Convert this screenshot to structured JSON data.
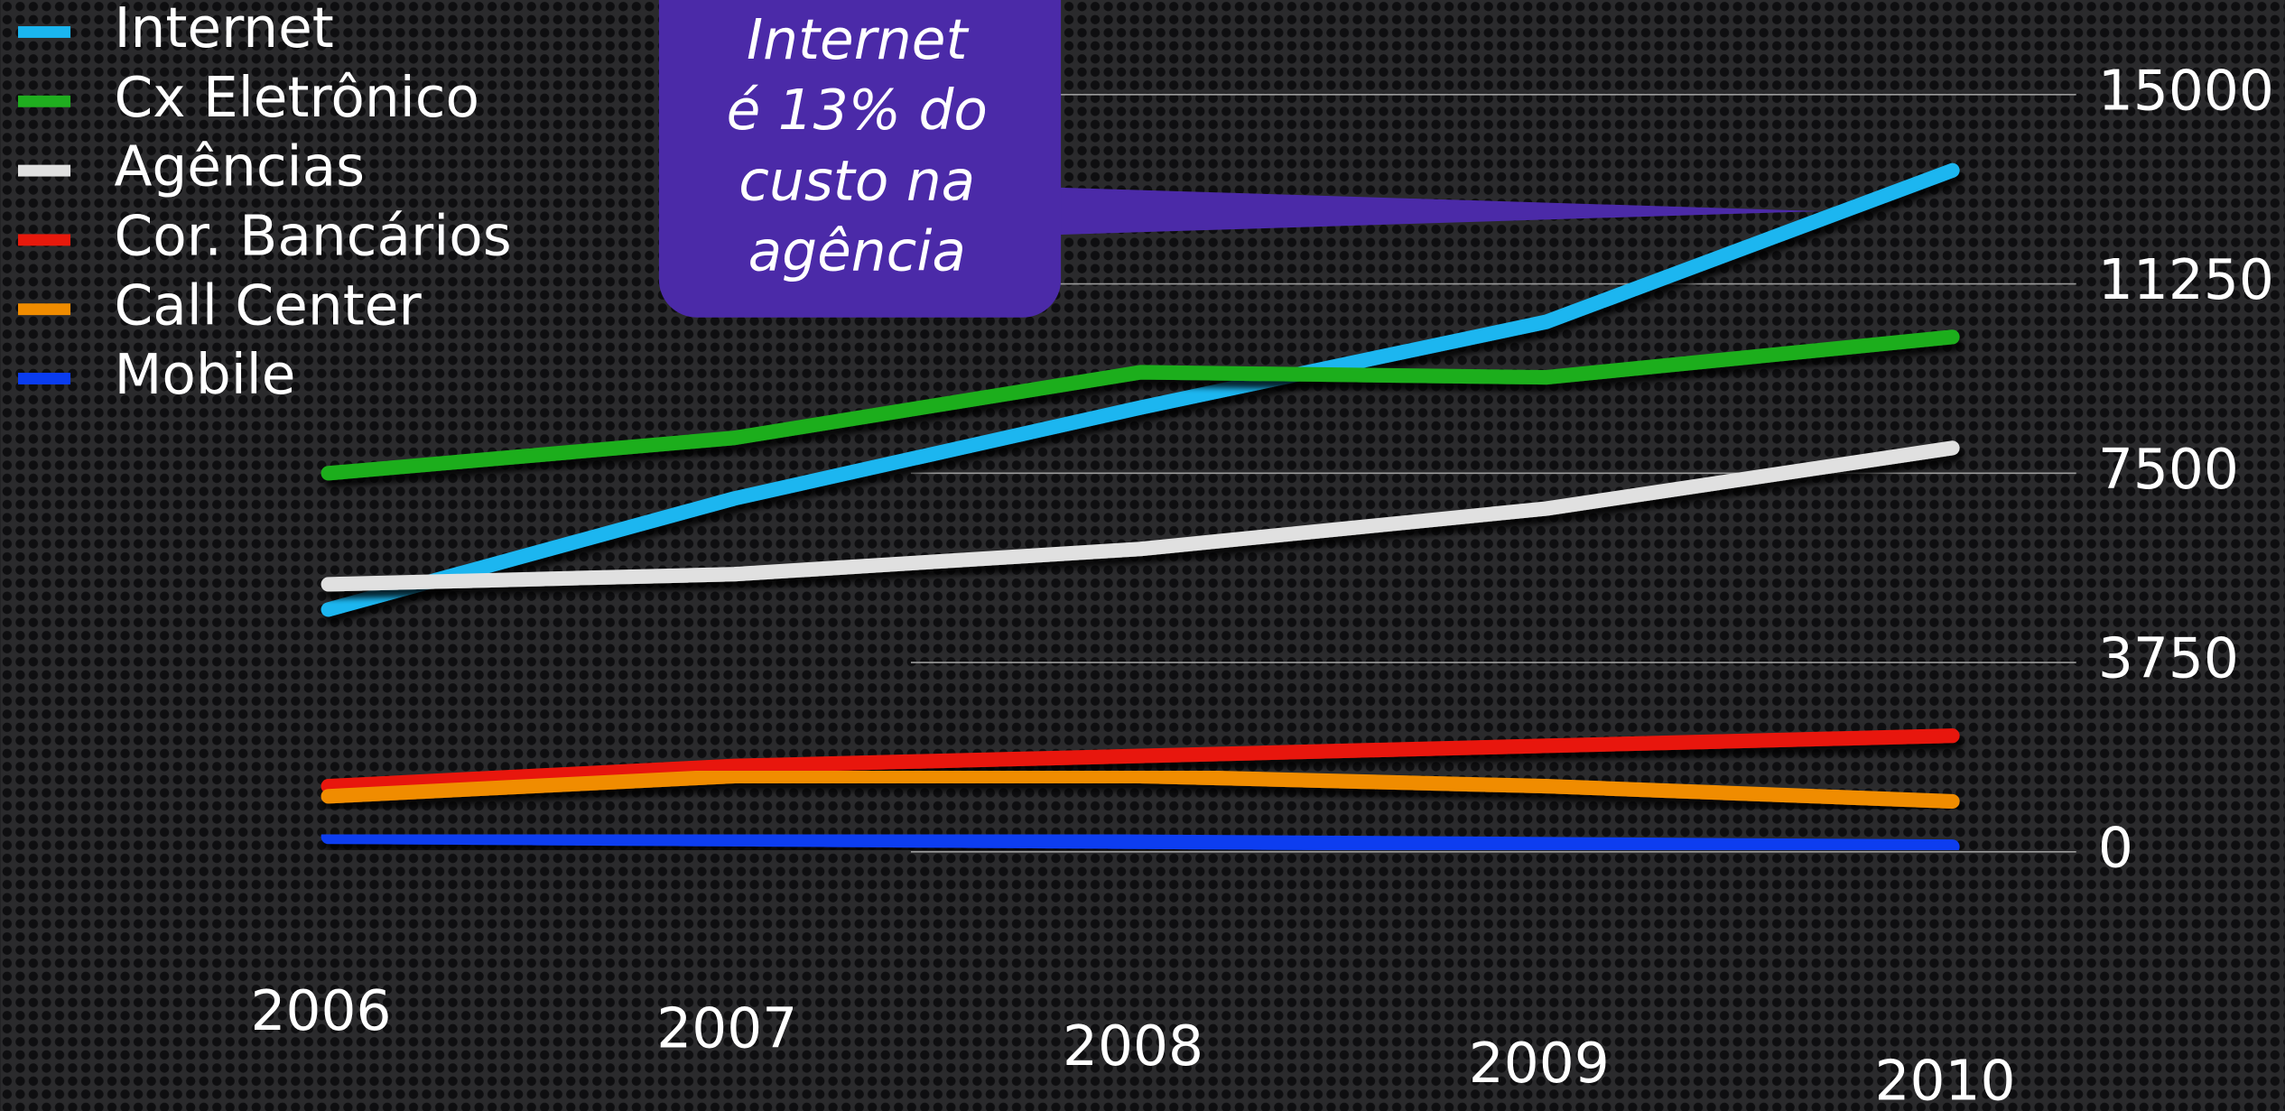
{
  "chart_data": {
    "type": "line",
    "categories": [
      "2006",
      "2007",
      "2008",
      "2009",
      "2010"
    ],
    "series": [
      {
        "name": "Internet",
        "color": "#1ab6f0",
        "values": [
          4800,
          7000,
          8800,
          10500,
          13500
        ]
      },
      {
        "name": "Cx Eletrônico",
        "color": "#1fae1f",
        "values": [
          7500,
          8200,
          9500,
          9400,
          10200
        ]
      },
      {
        "name": "Agências",
        "color": "#e0e0e0",
        "values": [
          5300,
          5500,
          6000,
          6800,
          8000
        ]
      },
      {
        "name": "Cor. Bancários",
        "color": "#e8190c",
        "values": [
          1300,
          1700,
          1900,
          2100,
          2300
        ]
      },
      {
        "name": "Call Center",
        "color": "#f08c00",
        "values": [
          1100,
          1500,
          1500,
          1300,
          1000
        ]
      },
      {
        "name": "Mobile",
        "color": "#0a3cf0",
        "values": [
          300,
          250,
          200,
          150,
          100
        ]
      }
    ],
    "ylim": [
      0,
      15000
    ],
    "yticks": [
      0,
      3750,
      7500,
      11250,
      15000
    ],
    "grid": true,
    "legend": "top-left",
    "annotation": [
      "Internet",
      "é 13% do",
      "custo na",
      "agência"
    ],
    "annotation_color": "#4b2aa8"
  }
}
